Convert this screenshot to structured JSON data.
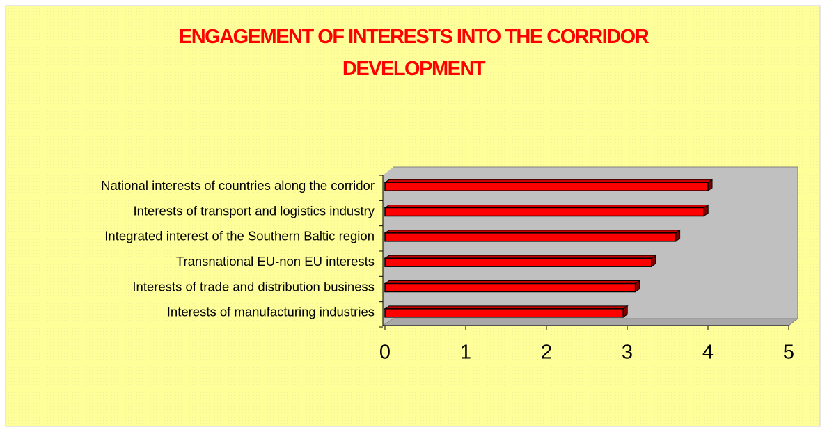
{
  "chart_data": {
    "type": "hbar",
    "title": "ENGAGEMENT OF INTERESTS INTO THE CORRIDOR DEVELOPMENT",
    "categories": [
      "National interests of countries along the corridor",
      "Interests of transport and logistics  industry",
      "Integrated interest of the Southern Baltic region",
      "Transnational EU-non EU interests",
      "Interests of trade and distribution business",
      "Interests of manufacturing industries"
    ],
    "values": [
      4.0,
      3.95,
      3.6,
      3.3,
      3.1,
      2.95
    ],
    "color": "#ff0000",
    "xlim": [
      0,
      5
    ],
    "xticks": [
      0,
      1,
      2,
      3,
      4,
      5
    ]
  }
}
